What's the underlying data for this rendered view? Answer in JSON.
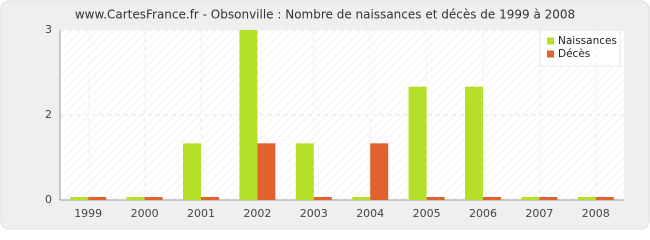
{
  "chart_data": {
    "type": "bar",
    "title": "www.CartesFrance.fr - Obsonville : Nombre de naissances et décès de 1999 à 2008",
    "categories": [
      "1999",
      "2000",
      "2001",
      "2002",
      "2003",
      "2004",
      "2005",
      "2006",
      "2007",
      "2008"
    ],
    "series": [
      {
        "name": "Naissances",
        "color": "#b5e02a",
        "values": [
          0,
          0,
          1,
          3,
          1,
          0,
          2,
          2,
          0,
          0
        ]
      },
      {
        "name": "Décès",
        "color": "#e0632f",
        "values": [
          0,
          0,
          0,
          1,
          0,
          1,
          0,
          0,
          0,
          0
        ]
      }
    ],
    "ylim": [
      0,
      3
    ],
    "yticks": [
      0,
      {
        "value": 1.5,
        "label": "2"
      },
      3
    ],
    "grid": true,
    "legend": "top-right"
  }
}
